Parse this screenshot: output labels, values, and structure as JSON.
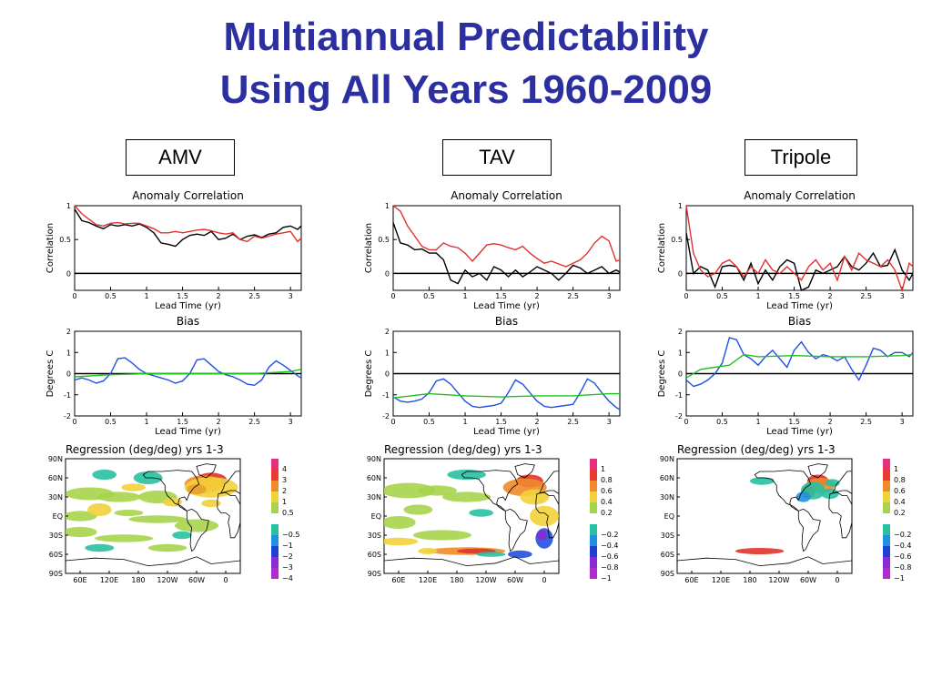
{
  "slide": {
    "title_line1": "Multiannual Predictability",
    "title_line2": "Using All Years 1960-2009",
    "columns": [
      "AMV",
      "TAV",
      "Tripole"
    ]
  },
  "colors": {
    "title": "#2b2fa0",
    "obs_black": "#000000",
    "model_red": "#e03030",
    "bias_blue": "#2050e0",
    "bias_green": "#20c020"
  },
  "chart_data": [
    {
      "panel": "AMV",
      "type": "line",
      "title": "Anomaly  Correlation",
      "xlabel": "Lead  Time  (yr)",
      "ylabel": "Correlation",
      "xlim": [
        0,
        3.15
      ],
      "ylim": [
        -0.25,
        1
      ],
      "xticks": [
        "0",
        "0.5",
        "1",
        "1.5",
        "2",
        "2.5",
        "3"
      ],
      "yticks": [
        "1",
        "0.5",
        "0"
      ],
      "series": [
        {
          "color": "black",
          "x": [
            0,
            0.1,
            0.2,
            0.3,
            0.4,
            0.5,
            0.6,
            0.7,
            0.8,
            0.9,
            1,
            1.1,
            1.2,
            1.3,
            1.4,
            1.5,
            1.6,
            1.7,
            1.8,
            1.9,
            2,
            2.1,
            2.2,
            2.3,
            2.4,
            2.5,
            2.6,
            2.7,
            2.8,
            2.9,
            3,
            3.1,
            3.15
          ],
          "y": [
            0.95,
            0.78,
            0.75,
            0.7,
            0.66,
            0.72,
            0.7,
            0.72,
            0.7,
            0.73,
            0.68,
            0.6,
            0.45,
            0.43,
            0.4,
            0.5,
            0.56,
            0.58,
            0.56,
            0.62,
            0.5,
            0.52,
            0.58,
            0.5,
            0.55,
            0.57,
            0.53,
            0.58,
            0.6,
            0.68,
            0.7,
            0.65,
            0.7
          ]
        },
        {
          "color": "red",
          "x": [
            0,
            0.1,
            0.2,
            0.3,
            0.4,
            0.5,
            0.6,
            0.7,
            0.8,
            0.9,
            1,
            1.1,
            1.2,
            1.3,
            1.4,
            1.5,
            1.6,
            1.7,
            1.8,
            1.9,
            2,
            2.1,
            2.2,
            2.3,
            2.4,
            2.5,
            2.6,
            2.7,
            2.8,
            2.9,
            3,
            3.1,
            3.15
          ],
          "y": [
            1,
            0.88,
            0.8,
            0.72,
            0.7,
            0.74,
            0.75,
            0.73,
            0.74,
            0.74,
            0.7,
            0.66,
            0.6,
            0.6,
            0.62,
            0.6,
            0.62,
            0.64,
            0.65,
            0.63,
            0.6,
            0.58,
            0.6,
            0.5,
            0.47,
            0.55,
            0.52,
            0.55,
            0.58,
            0.6,
            0.62,
            0.47,
            0.52
          ]
        }
      ]
    },
    {
      "panel": "TAV",
      "type": "line",
      "title": "Anomaly  Correlation",
      "xlabel": "Lead  Time  (yr)",
      "ylabel": "Correlation",
      "xlim": [
        0,
        3.15
      ],
      "ylim": [
        -0.25,
        1
      ],
      "xticks": [
        "0",
        "0.5",
        "1",
        "1.5",
        "2",
        "2.5",
        "3"
      ],
      "yticks": [
        "1",
        "0.5",
        "0"
      ],
      "series": [
        {
          "color": "black",
          "x": [
            0,
            0.1,
            0.2,
            0.3,
            0.4,
            0.5,
            0.6,
            0.7,
            0.8,
            0.9,
            1,
            1.1,
            1.2,
            1.3,
            1.4,
            1.5,
            1.6,
            1.7,
            1.8,
            1.9,
            2,
            2.1,
            2.2,
            2.3,
            2.4,
            2.5,
            2.6,
            2.7,
            2.8,
            2.9,
            3,
            3.1,
            3.15
          ],
          "y": [
            0.75,
            0.45,
            0.42,
            0.35,
            0.36,
            0.3,
            0.3,
            0.2,
            -0.1,
            -0.15,
            0.05,
            -0.05,
            0.0,
            -0.1,
            0.1,
            0.05,
            -0.05,
            0.05,
            -0.05,
            0.02,
            0.1,
            0.05,
            0.0,
            -0.1,
            0.0,
            0.12,
            0.08,
            0.0,
            0.05,
            0.1,
            0.0,
            0.05,
            0.02
          ]
        },
        {
          "color": "red",
          "x": [
            0,
            0.1,
            0.2,
            0.3,
            0.4,
            0.5,
            0.6,
            0.7,
            0.8,
            0.9,
            1,
            1.1,
            1.2,
            1.3,
            1.4,
            1.5,
            1.6,
            1.7,
            1.8,
            1.9,
            2,
            2.1,
            2.2,
            2.3,
            2.4,
            2.5,
            2.6,
            2.7,
            2.8,
            2.9,
            3,
            3.1,
            3.15
          ],
          "y": [
            1,
            0.92,
            0.7,
            0.55,
            0.4,
            0.35,
            0.35,
            0.45,
            0.4,
            0.38,
            0.3,
            0.18,
            0.3,
            0.42,
            0.44,
            0.42,
            0.38,
            0.35,
            0.4,
            0.3,
            0.22,
            0.15,
            0.18,
            0.14,
            0.1,
            0.15,
            0.2,
            0.3,
            0.45,
            0.55,
            0.48,
            0.18,
            0.2
          ]
        }
      ]
    },
    {
      "panel": "Tripole",
      "type": "line",
      "title": "Anomaly  Correlation",
      "xlabel": "Lead  Time  (yr)",
      "ylabel": "Correlation",
      "xlim": [
        0,
        3.15
      ],
      "ylim": [
        -0.25,
        1
      ],
      "xticks": [
        "0",
        "0.5",
        "1",
        "1.5",
        "2",
        "2.5",
        "3"
      ],
      "yticks": [
        "1",
        "0.5",
        "0"
      ],
      "series": [
        {
          "color": "black",
          "x": [
            0,
            0.1,
            0.2,
            0.3,
            0.4,
            0.5,
            0.6,
            0.7,
            0.8,
            0.9,
            1,
            1.1,
            1.2,
            1.3,
            1.4,
            1.5,
            1.6,
            1.7,
            1.8,
            1.9,
            2,
            2.1,
            2.2,
            2.3,
            2.4,
            2.5,
            2.6,
            2.7,
            2.8,
            2.9,
            3,
            3.1,
            3.15
          ],
          "y": [
            0.6,
            0.0,
            0.1,
            0.05,
            -0.2,
            0.1,
            0.12,
            0.1,
            -0.1,
            0.15,
            -0.15,
            0.05,
            -0.1,
            0.1,
            0.2,
            0.15,
            -0.25,
            -0.2,
            0.05,
            0.0,
            0.05,
            0.1,
            0.25,
            0.1,
            0.05,
            0.15,
            0.3,
            0.1,
            0.12,
            0.35,
            0.05,
            -0.1,
            0.0
          ]
        },
        {
          "color": "red",
          "x": [
            0,
            0.1,
            0.2,
            0.3,
            0.4,
            0.5,
            0.6,
            0.7,
            0.8,
            0.9,
            1,
            1.1,
            1.2,
            1.3,
            1.4,
            1.5,
            1.6,
            1.7,
            1.8,
            1.9,
            2,
            2.1,
            2.2,
            2.3,
            2.4,
            2.5,
            2.6,
            2.7,
            2.8,
            2.9,
            3,
            3.1,
            3.15
          ],
          "y": [
            1,
            0.3,
            0.05,
            -0.05,
            0.0,
            0.15,
            0.2,
            0.1,
            -0.05,
            0.1,
            0.0,
            0.2,
            0.05,
            0.0,
            0.1,
            0.0,
            -0.1,
            0.1,
            0.2,
            0.05,
            0.15,
            -0.1,
            0.25,
            0.05,
            0.3,
            0.2,
            0.15,
            0.1,
            0.2,
            0.05,
            -0.25,
            0.15,
            0.1
          ]
        }
      ]
    },
    {
      "panel": "AMV",
      "type": "line",
      "title": "Bias",
      "xlabel": "Lead  Time  (yr)",
      "ylabel": "Degrees  C",
      "xlim": [
        0,
        3.15
      ],
      "ylim": [
        -2,
        2
      ],
      "xticks": [
        "0",
        "0.5",
        "1",
        "1.5",
        "2",
        "2.5",
        "3"
      ],
      "yticks": [
        "2",
        "1",
        "0",
        "-1",
        "-2"
      ],
      "series": [
        {
          "color": "blue",
          "x": [
            0,
            0.1,
            0.2,
            0.3,
            0.4,
            0.5,
            0.6,
            0.7,
            0.8,
            0.9,
            1,
            1.1,
            1.2,
            1.3,
            1.4,
            1.5,
            1.6,
            1.7,
            1.8,
            1.9,
            2,
            2.1,
            2.2,
            2.3,
            2.4,
            2.5,
            2.6,
            2.7,
            2.8,
            2.9,
            3,
            3.1,
            3.15
          ],
          "y": [
            -0.3,
            -0.2,
            -0.3,
            -0.45,
            -0.35,
            0.0,
            0.7,
            0.75,
            0.5,
            0.2,
            0.0,
            -0.1,
            -0.2,
            -0.3,
            -0.45,
            -0.35,
            0.0,
            0.65,
            0.7,
            0.4,
            0.1,
            -0.05,
            -0.15,
            -0.3,
            -0.5,
            -0.55,
            -0.3,
            0.3,
            0.6,
            0.4,
            0.15,
            -0.1,
            -0.2
          ]
        },
        {
          "color": "green",
          "x": [
            0,
            0.5,
            1,
            1.5,
            2,
            2.5,
            3,
            3.15
          ],
          "y": [
            -0.15,
            -0.05,
            0.0,
            0.0,
            0.0,
            0.0,
            0.1,
            0.2
          ]
        }
      ]
    },
    {
      "panel": "TAV",
      "type": "line",
      "title": "Bias",
      "xlabel": "Lead  Time  (yr)",
      "ylabel": "Degrees  C",
      "xlim": [
        0,
        3.15
      ],
      "ylim": [
        -2,
        2
      ],
      "xticks": [
        "0",
        "0.5",
        "1",
        "1.5",
        "2",
        "2.5",
        "3"
      ],
      "yticks": [
        "2",
        "1",
        "0",
        "-1",
        "-2"
      ],
      "series": [
        {
          "color": "blue",
          "x": [
            0,
            0.1,
            0.2,
            0.3,
            0.4,
            0.5,
            0.6,
            0.7,
            0.8,
            0.9,
            1,
            1.1,
            1.2,
            1.3,
            1.4,
            1.5,
            1.6,
            1.7,
            1.8,
            1.9,
            2,
            2.1,
            2.2,
            2.3,
            2.4,
            2.5,
            2.6,
            2.7,
            2.8,
            2.9,
            3,
            3.1,
            3.15
          ],
          "y": [
            -1.1,
            -1.3,
            -1.35,
            -1.3,
            -1.2,
            -0.9,
            -0.35,
            -0.25,
            -0.5,
            -0.9,
            -1.3,
            -1.55,
            -1.6,
            -1.55,
            -1.5,
            -1.4,
            -0.9,
            -0.3,
            -0.5,
            -0.9,
            -1.3,
            -1.55,
            -1.6,
            -1.55,
            -1.5,
            -1.45,
            -0.9,
            -0.25,
            -0.45,
            -0.9,
            -1.3,
            -1.6,
            -1.7
          ]
        },
        {
          "color": "green",
          "x": [
            0,
            0.5,
            1,
            1.5,
            2,
            2.5,
            3,
            3.15
          ],
          "y": [
            -1.15,
            -0.95,
            -1.05,
            -1.1,
            -1.05,
            -1.05,
            -0.95,
            -0.95
          ]
        }
      ]
    },
    {
      "panel": "Tripole",
      "type": "line",
      "title": "Bias",
      "xlabel": "Lead  Time  (yr)",
      "ylabel": "Degrees  C",
      "xlim": [
        0,
        3.15
      ],
      "ylim": [
        -2,
        2
      ],
      "xticks": [
        "0",
        "0.5",
        "1",
        "1.5",
        "2",
        "2.5",
        "3"
      ],
      "yticks": [
        "2",
        "1",
        "0",
        "-1",
        "-2"
      ],
      "series": [
        {
          "color": "blue",
          "x": [
            0,
            0.1,
            0.2,
            0.3,
            0.4,
            0.5,
            0.6,
            0.7,
            0.8,
            0.9,
            1,
            1.1,
            1.2,
            1.3,
            1.4,
            1.5,
            1.6,
            1.7,
            1.8,
            1.9,
            2,
            2.1,
            2.2,
            2.3,
            2.4,
            2.5,
            2.6,
            2.7,
            2.8,
            2.9,
            3,
            3.1,
            3.15
          ],
          "y": [
            -0.3,
            -0.6,
            -0.5,
            -0.3,
            0.0,
            0.5,
            1.7,
            1.6,
            0.9,
            0.7,
            0.4,
            0.8,
            1.1,
            0.7,
            0.3,
            1.1,
            1.5,
            1.0,
            0.7,
            0.9,
            0.8,
            0.6,
            0.8,
            0.2,
            -0.3,
            0.4,
            1.2,
            1.1,
            0.8,
            1.0,
            1.0,
            0.8,
            1.0
          ]
        },
        {
          "color": "green",
          "x": [
            0,
            0.2,
            0.4,
            0.6,
            0.8,
            1,
            1.5,
            2,
            2.5,
            3,
            3.15
          ],
          "y": [
            -0.2,
            0.2,
            0.3,
            0.4,
            0.9,
            0.8,
            0.85,
            0.8,
            0.8,
            0.85,
            0.9
          ]
        }
      ]
    }
  ],
  "maps": [
    {
      "panel": "AMV",
      "title": "Regression  (deg/deg)  yrs  1-3",
      "lat_labels": [
        "90N",
        "60N",
        "30N",
        "EQ",
        "30S",
        "60S",
        "90S"
      ],
      "lon_labels": [
        "60E",
        "120E",
        "180",
        "120W",
        "60W",
        "0"
      ],
      "colorbar": [
        "4",
        "3",
        "2",
        "1",
        "0.5",
        "-0.5",
        "-1",
        "-2",
        "-3",
        "-4"
      ]
    },
    {
      "panel": "TAV",
      "title": "Regression  (deg/deg)  yrs  1-3",
      "lat_labels": [
        "90N",
        "60N",
        "30N",
        "EQ",
        "30S",
        "60S",
        "90S"
      ],
      "lon_labels": [
        "60E",
        "120E",
        "180",
        "120W",
        "60W",
        "0"
      ],
      "colorbar": [
        "1",
        "0.8",
        "0.6",
        "0.4",
        "0.2",
        "-0.2",
        "-0.4",
        "-0.6",
        "-0.8",
        "-1"
      ]
    },
    {
      "panel": "Tripole",
      "title": "Regression  (deg/deg)  yrs  1-3",
      "lat_labels": [
        "90N",
        "60N",
        "30N",
        "EQ",
        "30S",
        "60S",
        "90S"
      ],
      "lon_labels": [
        "60E",
        "120E",
        "180",
        "120W",
        "60W",
        "0"
      ],
      "colorbar": [
        "1",
        "0.8",
        "0.6",
        "0.4",
        "0.2",
        "-0.2",
        "-0.4",
        "-0.6",
        "-0.8",
        "-1"
      ]
    }
  ]
}
